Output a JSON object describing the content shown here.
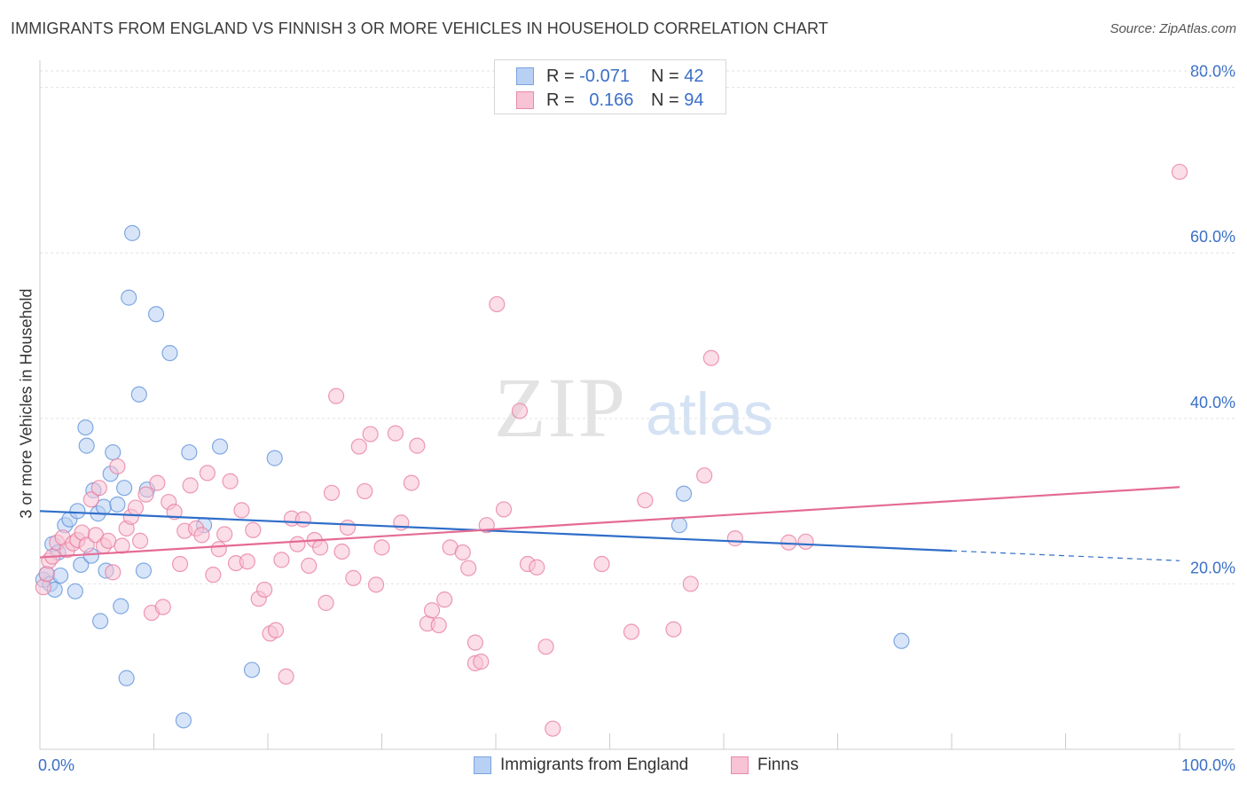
{
  "title": "IMMIGRANTS FROM ENGLAND VS FINNISH 3 OR MORE VEHICLES IN HOUSEHOLD CORRELATION CHART",
  "source": "Source: ZipAtlas.com",
  "watermark": {
    "zip": "ZIP",
    "atlas": "atlas"
  },
  "legend": {
    "r_label": "R =",
    "n_label": "N =",
    "series": [
      {
        "r": "-0.071",
        "n": "42",
        "fill": "#b8d0f3",
        "stroke": "#7aa3e0"
      },
      {
        "r": "0.166",
        "n": "94",
        "fill": "#f8c3d4",
        "stroke": "#e88aa8"
      }
    ]
  },
  "chart_data": {
    "type": "scatter",
    "title": "IMMIGRANTS FROM ENGLAND VS FINNISH 3 OR MORE VEHICLES IN HOUSEHOLD CORRELATION CHART",
    "xlabel": "",
    "ylabel": "3 or more Vehicles in Household",
    "xlim": [
      0,
      100
    ],
    "ylim": [
      0,
      82
    ],
    "x_tick_labels": [
      "0.0%",
      "100.0%"
    ],
    "y_ticks": [
      20,
      40,
      60,
      80
    ],
    "y_tick_labels": [
      "20.0%",
      "40.0%",
      "60.0%",
      "80.0%"
    ],
    "grid": true,
    "series": [
      {
        "name": "Immigrants from England",
        "color": "#5b8fd9",
        "fill": "#b8d0f3",
        "trend": {
          "x0": 0,
          "y0": 28.8,
          "x1": 80,
          "y1": 24.0,
          "dash_x1": 100,
          "dash_y1": 22.8,
          "color": "#2f6ec9"
        },
        "points": [
          [
            0.3,
            20.5
          ],
          [
            0.6,
            21.2
          ],
          [
            0.9,
            20.0
          ],
          [
            1.1,
            24.8
          ],
          [
            1.3,
            19.3
          ],
          [
            1.6,
            23.8
          ],
          [
            1.8,
            21.0
          ],
          [
            2.2,
            27.1
          ],
          [
            2.6,
            27.8
          ],
          [
            3.1,
            19.1
          ],
          [
            3.3,
            28.8
          ],
          [
            3.6,
            22.3
          ],
          [
            4.0,
            38.9
          ],
          [
            4.1,
            36.7
          ],
          [
            4.5,
            23.4
          ],
          [
            4.7,
            31.3
          ],
          [
            5.1,
            28.5
          ],
          [
            5.3,
            15.5
          ],
          [
            5.6,
            29.3
          ],
          [
            5.8,
            21.6
          ],
          [
            6.2,
            33.3
          ],
          [
            6.4,
            35.9
          ],
          [
            6.8,
            29.6
          ],
          [
            7.1,
            17.3
          ],
          [
            7.4,
            31.6
          ],
          [
            7.6,
            8.6
          ],
          [
            7.8,
            54.6
          ],
          [
            8.1,
            62.4
          ],
          [
            8.7,
            42.9
          ],
          [
            9.1,
            21.6
          ],
          [
            9.4,
            31.4
          ],
          [
            10.2,
            52.6
          ],
          [
            11.4,
            47.9
          ],
          [
            12.6,
            3.5
          ],
          [
            13.1,
            35.9
          ],
          [
            14.4,
            27.1
          ],
          [
            15.8,
            36.6
          ],
          [
            18.6,
            9.6
          ],
          [
            20.6,
            35.2
          ],
          [
            56.1,
            27.1
          ],
          [
            56.5,
            30.9
          ],
          [
            75.6,
            13.1
          ]
        ]
      },
      {
        "name": "Finns",
        "color": "#e7799d",
        "fill": "#f8c3d4",
        "trend": {
          "x0": 0,
          "y0": 23.2,
          "x1": 100,
          "y1": 31.7,
          "color": "#e46b94"
        },
        "points": [
          [
            0.3,
            19.6
          ],
          [
            0.6,
            21.2
          ],
          [
            0.8,
            22.8
          ],
          [
            1.1,
            23.3
          ],
          [
            1.5,
            25.0
          ],
          [
            2.0,
            25.6
          ],
          [
            2.4,
            24.1
          ],
          [
            2.9,
            24.9
          ],
          [
            3.3,
            25.3
          ],
          [
            3.7,
            26.2
          ],
          [
            4.1,
            24.7
          ],
          [
            4.5,
            30.2
          ],
          [
            4.9,
            25.9
          ],
          [
            5.2,
            31.6
          ],
          [
            5.6,
            24.6
          ],
          [
            6.0,
            25.2
          ],
          [
            6.4,
            21.4
          ],
          [
            6.8,
            34.2
          ],
          [
            7.2,
            24.6
          ],
          [
            7.6,
            26.7
          ],
          [
            8.0,
            28.1
          ],
          [
            8.4,
            29.2
          ],
          [
            8.8,
            25.2
          ],
          [
            9.3,
            30.8
          ],
          [
            9.8,
            16.5
          ],
          [
            10.3,
            32.2
          ],
          [
            10.8,
            17.2
          ],
          [
            11.3,
            29.9
          ],
          [
            11.8,
            28.7
          ],
          [
            12.3,
            22.4
          ],
          [
            12.7,
            26.4
          ],
          [
            13.2,
            31.9
          ],
          [
            13.7,
            26.7
          ],
          [
            14.2,
            25.9
          ],
          [
            14.7,
            33.4
          ],
          [
            15.2,
            21.1
          ],
          [
            15.7,
            24.2
          ],
          [
            16.2,
            26.0
          ],
          [
            16.7,
            32.4
          ],
          [
            17.2,
            22.5
          ],
          [
            17.7,
            28.9
          ],
          [
            18.2,
            22.7
          ],
          [
            18.7,
            26.5
          ],
          [
            19.2,
            18.2
          ],
          [
            19.7,
            19.3
          ],
          [
            20.2,
            14.0
          ],
          [
            20.7,
            14.4
          ],
          [
            21.2,
            22.9
          ],
          [
            21.6,
            8.8
          ],
          [
            22.1,
            27.9
          ],
          [
            22.6,
            24.8
          ],
          [
            23.1,
            27.8
          ],
          [
            23.6,
            22.2
          ],
          [
            24.1,
            25.3
          ],
          [
            24.6,
            24.4
          ],
          [
            25.1,
            17.7
          ],
          [
            25.6,
            31.0
          ],
          [
            26.0,
            42.7
          ],
          [
            26.5,
            23.9
          ],
          [
            27.0,
            26.8
          ],
          [
            27.5,
            20.7
          ],
          [
            28.0,
            36.6
          ],
          [
            28.5,
            31.2
          ],
          [
            29.0,
            38.1
          ],
          [
            29.5,
            19.9
          ],
          [
            30.0,
            24.4
          ],
          [
            31.2,
            38.2
          ],
          [
            31.7,
            27.4
          ],
          [
            32.6,
            32.2
          ],
          [
            33.1,
            36.7
          ],
          [
            34.0,
            15.2
          ],
          [
            34.4,
            16.8
          ],
          [
            35.0,
            15.0
          ],
          [
            35.5,
            18.1
          ],
          [
            36.0,
            24.4
          ],
          [
            37.1,
            23.8
          ],
          [
            37.6,
            21.9
          ],
          [
            38.2,
            10.4
          ],
          [
            38.7,
            10.6
          ],
          [
            38.2,
            12.9
          ],
          [
            39.2,
            27.1
          ],
          [
            40.1,
            53.8
          ],
          [
            40.7,
            29.0
          ],
          [
            42.1,
            40.9
          ],
          [
            42.8,
            22.4
          ],
          [
            43.6,
            22.0
          ],
          [
            44.4,
            12.4
          ],
          [
            45.0,
            2.5
          ],
          [
            49.3,
            22.4
          ],
          [
            51.9,
            14.2
          ],
          [
            53.1,
            30.1
          ],
          [
            55.6,
            14.5
          ],
          [
            57.1,
            20.0
          ],
          [
            58.3,
            33.1
          ],
          [
            58.9,
            47.3
          ],
          [
            61.0,
            25.5
          ],
          [
            65.7,
            25.0
          ],
          [
            67.2,
            25.1
          ],
          [
            100.0,
            69.8
          ]
        ]
      }
    ]
  },
  "bottom_legend": {
    "items": [
      {
        "label": "Immigrants from England",
        "fill": "#b8d0f3",
        "stroke": "#7aa3e0"
      },
      {
        "label": "Finns",
        "fill": "#f8c3d4",
        "stroke": "#e88aa8"
      }
    ]
  }
}
